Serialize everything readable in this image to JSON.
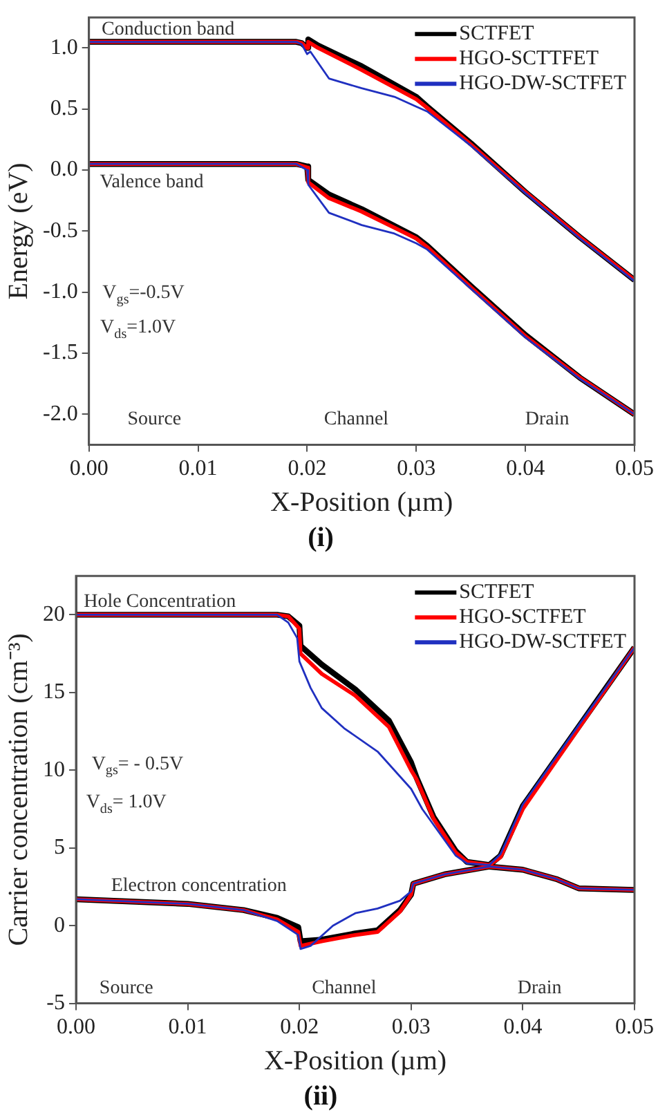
{
  "chart_data": [
    {
      "type": "line",
      "title": "(i)",
      "xlabel": "X-Position (µm)",
      "ylabel": "Energy (eV)",
      "xlim": [
        0,
        0.05
      ],
      "ylim": [
        -2.25,
        1.25
      ],
      "xticks": [
        {
          "value": 0,
          "label": "0.00"
        },
        {
          "value": 0.01,
          "label": "0.01"
        },
        {
          "value": 0.02,
          "label": "0.02"
        },
        {
          "value": 0.03,
          "label": "0.03"
        },
        {
          "value": 0.04,
          "label": "0.04"
        },
        {
          "value": 0.05,
          "label": "0.05"
        }
      ],
      "yticks": [
        {
          "value": -2,
          "label": "-2.0"
        },
        -1.5,
        {
          "value": -1,
          "label": "-1.0"
        },
        -0.5,
        {
          "value": 0,
          "label": "0.0"
        },
        0.5,
        {
          "value": 1,
          "label": "1.0"
        }
      ],
      "grid": false,
      "legend": "top right",
      "marker": "none",
      "line_style": "solid",
      "series": [
        {
          "name": "SCTFET",
          "color": "#000000",
          "x": [
            0,
            0.018,
            0.019,
            0.0195,
            0.02,
            0.0201,
            0.021,
            0.025,
            0.03,
            0.031,
            0.035,
            0.04,
            0.045,
            0.05
          ],
          "values": [
            1.05,
            1.05,
            1.05,
            1.04,
            1.0,
            1.07,
            1.02,
            0.85,
            0.6,
            0.52,
            0.22,
            -0.18,
            -0.55,
            -0.9
          ]
        },
        {
          "name": "HGO-SCTTFET",
          "color": "#ff0000",
          "x": [
            0,
            0.018,
            0.019,
            0.0195,
            0.02,
            0.0201,
            0.021,
            0.025,
            0.03,
            0.031,
            0.035,
            0.04,
            0.045,
            0.05
          ],
          "values": [
            1.05,
            1.05,
            1.05,
            1.04,
            1.0,
            1.05,
            1.0,
            0.82,
            0.58,
            0.51,
            0.21,
            -0.18,
            -0.55,
            -0.9
          ]
        },
        {
          "name": "HGO-DW-SCTFET",
          "color": "#2030c0",
          "x": [
            0,
            0.018,
            0.019,
            0.0195,
            0.02,
            0.0203,
            0.022,
            0.025,
            0.028,
            0.03,
            0.031,
            0.035,
            0.04,
            0.045,
            0.05
          ],
          "values": [
            1.05,
            1.05,
            1.05,
            1.03,
            0.95,
            0.97,
            0.75,
            0.67,
            0.6,
            0.52,
            0.48,
            0.2,
            -0.19,
            -0.56,
            -0.91
          ]
        },
        {
          "color": "#000000",
          "x": [
            0,
            0.018,
            0.019,
            0.02,
            0.0201,
            0.022,
            0.025,
            0.03,
            0.031,
            0.035,
            0.04,
            0.045,
            0.05
          ],
          "values": [
            0.05,
            0.05,
            0.05,
            0.03,
            -0.08,
            -0.2,
            -0.32,
            -0.55,
            -0.62,
            -0.95,
            -1.35,
            -1.7,
            -2.0
          ]
        },
        {
          "color": "#ff0000",
          "x": [
            0,
            0.018,
            0.019,
            0.02,
            0.0201,
            0.022,
            0.025,
            0.03,
            0.031,
            0.035,
            0.04,
            0.045,
            0.05
          ],
          "values": [
            0.05,
            0.05,
            0.05,
            0.02,
            -0.1,
            -0.23,
            -0.34,
            -0.56,
            -0.63,
            -0.96,
            -1.36,
            -1.7,
            -2.0
          ]
        },
        {
          "color": "#2030c0",
          "x": [
            0,
            0.018,
            0.019,
            0.02,
            0.0201,
            0.022,
            0.025,
            0.028,
            0.03,
            0.031,
            0.035,
            0.04,
            0.045,
            0.05
          ],
          "values": [
            0.05,
            0.05,
            0.05,
            0.0,
            -0.12,
            -0.35,
            -0.45,
            -0.52,
            -0.6,
            -0.65,
            -0.97,
            -1.37,
            -1.71,
            -2.0
          ]
        }
      ],
      "annotations": [
        "Conduction band",
        "Valence band",
        "V$_{gs}$=-0.5V",
        "V$_{ds}$=1.0V",
        "Source",
        "Channel",
        "Drain"
      ]
    },
    {
      "type": "line",
      "title": "(ii)",
      "xlabel": "X-Position (µm)",
      "ylabel": "Carrier concentration (cm⁻³)",
      "xlim": [
        0,
        0.05
      ],
      "ylim": [
        -5,
        22.5
      ],
      "xticks": [
        {
          "value": 0,
          "label": "0.00"
        },
        {
          "value": 0.01,
          "label": "0.01"
        },
        {
          "value": 0.02,
          "label": "0.02"
        },
        {
          "value": 0.03,
          "label": "0.03"
        },
        {
          "value": 0.04,
          "label": "0.04"
        },
        {
          "value": 0.05,
          "label": "0.05"
        }
      ],
      "yticks": [
        -5,
        0,
        5,
        10,
        15,
        20
      ],
      "grid": false,
      "legend": "top right",
      "marker": "none",
      "line_style": "solid",
      "series": [
        {
          "name": "SCTFET",
          "color": "#000000",
          "x": [
            0,
            0.018,
            0.019,
            0.02,
            0.0201,
            0.022,
            0.025,
            0.028,
            0.03,
            0.0305,
            0.032,
            0.034,
            0.035,
            0.037,
            0.038,
            0.04,
            0.045,
            0.05
          ],
          "values": [
            20,
            20,
            19.9,
            19.3,
            18,
            16.8,
            15.2,
            13.2,
            10.5,
            9.5,
            7,
            4.8,
            4.1,
            3.9,
            4.5,
            7.7,
            12.8,
            17.9
          ]
        },
        {
          "name": "HGO-SCTFET",
          "color": "#ff0000",
          "x": [
            0,
            0.018,
            0.019,
            0.02,
            0.0201,
            0.022,
            0.025,
            0.028,
            0.03,
            0.0305,
            0.032,
            0.034,
            0.035,
            0.037,
            0.038,
            0.04,
            0.045,
            0.05
          ],
          "values": [
            20,
            20,
            19.9,
            19.1,
            17.5,
            16.2,
            14.8,
            12.8,
            10,
            9.4,
            6.9,
            4.7,
            4.1,
            3.9,
            4.4,
            7.5,
            12.7,
            17.9
          ]
        },
        {
          "name": "HGO-DW-SCTFET",
          "color": "#2030c0",
          "x": [
            0,
            0.018,
            0.019,
            0.0198,
            0.02,
            0.021,
            0.022,
            0.024,
            0.027,
            0.03,
            0.031,
            0.033,
            0.034,
            0.035,
            0.037,
            0.038,
            0.04,
            0.045,
            0.05
          ],
          "values": [
            20,
            20,
            19.5,
            18.5,
            17,
            15.3,
            14,
            12.7,
            11.2,
            8.8,
            7.5,
            5.5,
            4.5,
            4,
            3.9,
            4.6,
            7.8,
            12.9,
            17.9
          ]
        },
        {
          "color": "#000000",
          "x": [
            0,
            0.01,
            0.015,
            0.018,
            0.0199,
            0.0201,
            0.022,
            0.025,
            0.027,
            0.029,
            0.03,
            0.0302,
            0.033,
            0.037,
            0.04,
            0.043,
            0.045,
            0.05
          ],
          "values": [
            1.7,
            1.4,
            1.0,
            0.5,
            -0.1,
            -1.0,
            -0.9,
            -0.5,
            -0.3,
            1.0,
            2.0,
            2.7,
            3.3,
            3.8,
            3.6,
            3.0,
            2.4,
            2.3
          ]
        },
        {
          "color": "#ff0000",
          "x": [
            0,
            0.01,
            0.015,
            0.018,
            0.0199,
            0.0201,
            0.022,
            0.025,
            0.027,
            0.029,
            0.03,
            0.0302,
            0.033,
            0.037,
            0.04,
            0.043,
            0.045,
            0.05
          ],
          "values": [
            1.7,
            1.4,
            1.0,
            0.4,
            -0.4,
            -1.3,
            -1.0,
            -0.6,
            -0.4,
            0.9,
            2.0,
            2.7,
            3.3,
            3.8,
            3.6,
            3.0,
            2.4,
            2.3
          ]
        },
        {
          "color": "#2030c0",
          "x": [
            0,
            0.01,
            0.015,
            0.018,
            0.0199,
            0.0201,
            0.021,
            0.023,
            0.025,
            0.027,
            0.029,
            0.03,
            0.0302,
            0.033,
            0.037,
            0.04,
            0.043,
            0.045,
            0.05
          ],
          "values": [
            1.7,
            1.4,
            1.0,
            0.3,
            -0.6,
            -1.5,
            -1.3,
            0,
            0.8,
            1.1,
            1.6,
            2.2,
            2.7,
            3.3,
            3.8,
            3.6,
            3.0,
            2.4,
            2.3
          ]
        }
      ],
      "annotations": [
        "Hole Concentration",
        "Electron concentration",
        "V$_{gs}$= - 0.5V",
        "V$_{ds}$= 1.0V",
        "Source",
        "Channel",
        "Drain"
      ]
    }
  ]
}
